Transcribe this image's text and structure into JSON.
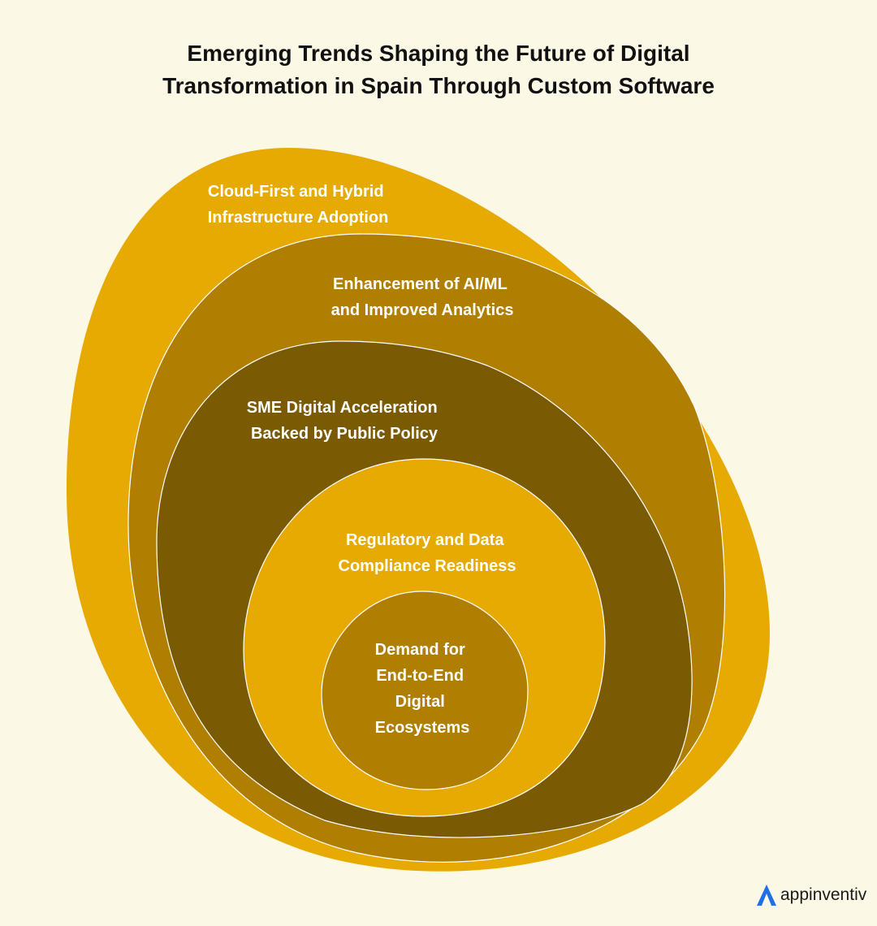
{
  "title": {
    "line1": "Emerging Trends Shaping the Future of Digital",
    "line2": "Transformation in Spain Through Custom Software"
  },
  "layers": [
    {
      "lines": [
        "Cloud-First and Hybrid",
        "Infrastructure Adoption"
      ],
      "color": "#e7aa02"
    },
    {
      "lines": [
        "Enhancement of AI/ML",
        "and Improved Analytics"
      ],
      "color": "#b07f02"
    },
    {
      "lines": [
        "SME Digital Acceleration",
        "Backed by Public Policy"
      ],
      "color": "#7a5a02"
    },
    {
      "lines": [
        "Regulatory and Data",
        "Compliance Readiness"
      ],
      "color": "#e7aa02"
    },
    {
      "lines": [
        "Demand for",
        "End-to-End",
        "Digital",
        "Ecosystems"
      ],
      "color": "#b07f02"
    }
  ],
  "logo": {
    "text": "appinventiv",
    "icon": "appinventiv-logo-icon",
    "icon_color": "#1f6fe5"
  }
}
